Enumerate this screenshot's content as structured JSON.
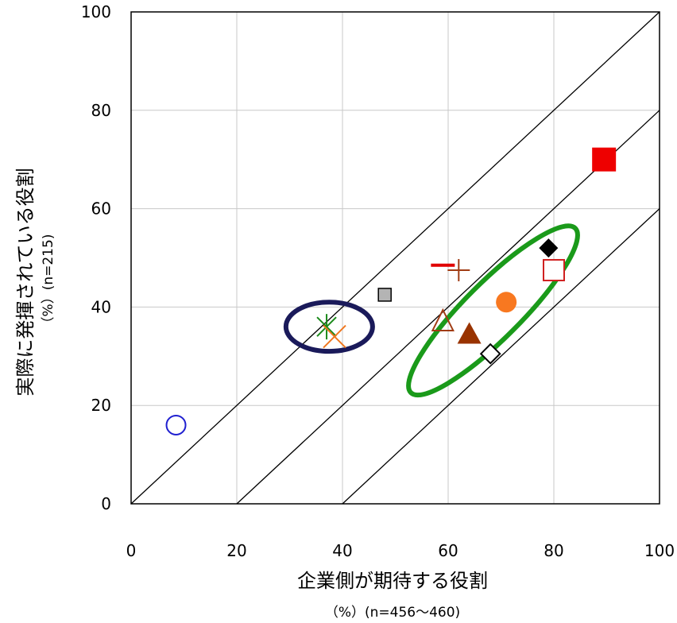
{
  "chart_data": {
    "type": "scatter",
    "xlabel": "企業側が期待する役割",
    "xlabel_unit": "（%）(n=456～460)",
    "ylabel": "実際に発揮されている役割",
    "ylabel_unit": "（%）(n=215)",
    "xlim": [
      0,
      100
    ],
    "ylim": [
      0,
      100
    ],
    "x_ticks": [
      "0",
      "20",
      "40",
      "60",
      "80",
      "100"
    ],
    "y_ticks": [
      "0",
      "20",
      "40",
      "60",
      "80",
      "100"
    ],
    "grid": true,
    "reference_lines": [
      {
        "offset": 0
      },
      {
        "offset": -20
      },
      {
        "offset": -40
      }
    ],
    "points": [
      {
        "marker": "circle-open",
        "color": "#1f1fd0",
        "x": 8.5,
        "y": 16
      },
      {
        "marker": "star",
        "color": "#1a8a1a",
        "x": 37,
        "y": 36
      },
      {
        "marker": "x",
        "color": "#f07820",
        "x": 38.5,
        "y": 34
      },
      {
        "marker": "square-filled",
        "color": "#b4b4b4",
        "x": 48,
        "y": 42.5
      },
      {
        "marker": "dash",
        "color": "#e00000",
        "x": 59,
        "y": 48.5
      },
      {
        "marker": "plus",
        "color": "#a03c14",
        "x": 62,
        "y": 47.5
      },
      {
        "marker": "triangle-open",
        "color": "#a03c14",
        "x": 59,
        "y": 37
      },
      {
        "marker": "triangle-filled",
        "color": "#993300",
        "x": 64,
        "y": 34.5
      },
      {
        "marker": "diamond-open",
        "color": "#000000",
        "x": 68,
        "y": 30.5
      },
      {
        "marker": "circle-filled",
        "color": "#f87820",
        "x": 71,
        "y": 41
      },
      {
        "marker": "diamond-filled",
        "color": "#000000",
        "x": 79,
        "y": 52
      },
      {
        "marker": "square-open",
        "color": "#d02020",
        "x": 80,
        "y": 47.5
      },
      {
        "marker": "square-filled",
        "color": "#ee0000",
        "x": 89.5,
        "y": 70
      }
    ],
    "highlights": [
      {
        "shape": "ellipse",
        "color": "#1a1a5a"
      },
      {
        "shape": "ellipse",
        "color": "#1a9a1a"
      }
    ]
  }
}
